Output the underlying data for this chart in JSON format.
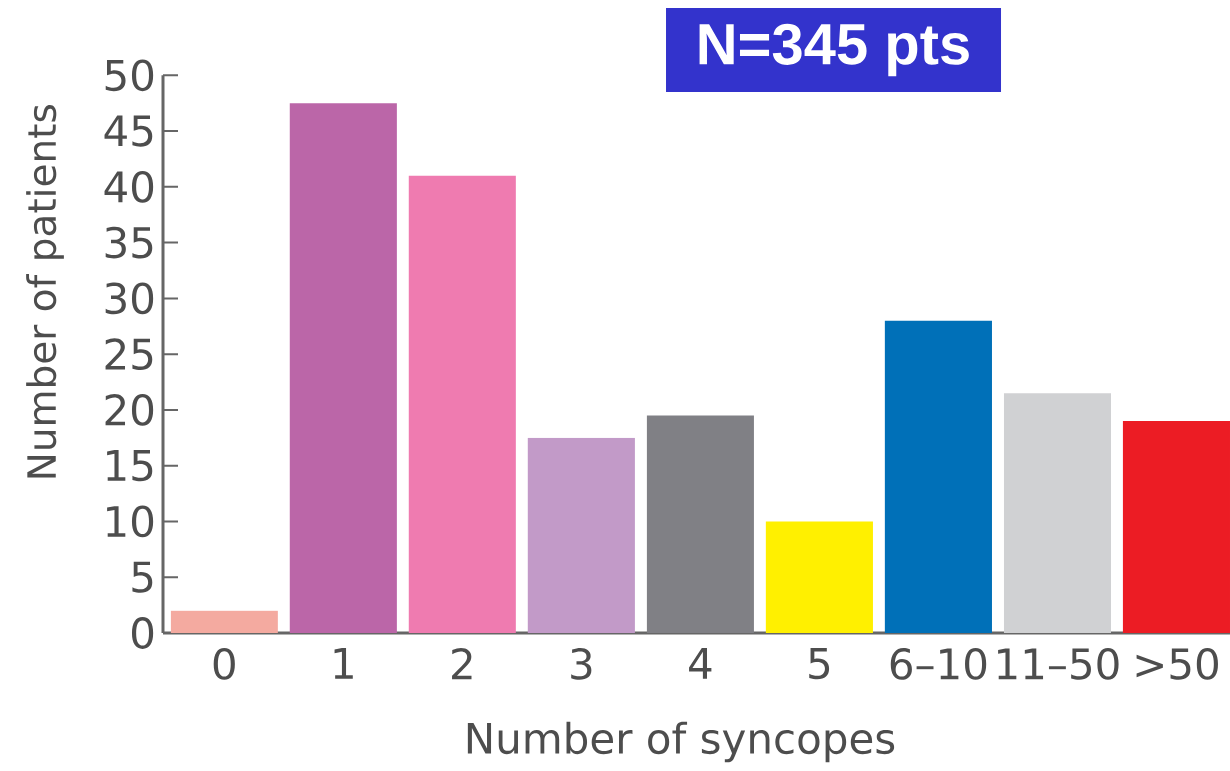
{
  "chart_data": {
    "type": "bar",
    "xlabel": "Number of syncopes",
    "ylabel": "Number of patients",
    "annotations": [
      "N=345 pts"
    ],
    "categories": [
      "0",
      "1",
      "2",
      "3",
      "4",
      "5",
      "6–10",
      "11–50",
      ">50"
    ],
    "values": [
      2,
      47.5,
      41,
      17.5,
      19.5,
      10,
      28,
      21.5,
      19
    ],
    "colors": [
      "#f4aaa0",
      "#bb66a8",
      "#ef7bb0",
      "#c29ac8",
      "#808085",
      "#fff000",
      "#0070b8",
      "#d0d1d3",
      "#ec1c24"
    ],
    "ylim": [
      0,
      50
    ],
    "yticks": [
      0,
      5,
      10,
      15,
      20,
      25,
      30,
      35,
      40,
      45,
      50
    ]
  }
}
